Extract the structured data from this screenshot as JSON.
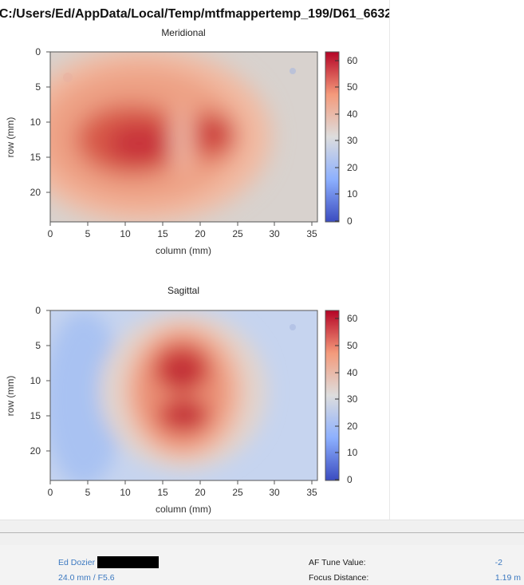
{
  "window": {
    "title": "C:/Users/Ed/AppData/Local/Temp/mtfmappertemp_199/D61_6632"
  },
  "plots": [
    {
      "title": "Meridional",
      "xlabel": "column (mm)",
      "ylabel": "row (mm)",
      "x_ticks": [
        "0",
        "5",
        "10",
        "15",
        "20",
        "25",
        "30",
        "35"
      ],
      "y_ticks": [
        "0",
        "5",
        "10",
        "15",
        "20"
      ],
      "colorbar_ticks": [
        "60",
        "50",
        "40",
        "30",
        "20",
        "10",
        "0"
      ]
    },
    {
      "title": "Sagittal",
      "xlabel": "column (mm)",
      "ylabel": "row (mm)",
      "x_ticks": [
        "0",
        "5",
        "10",
        "15",
        "20",
        "25",
        "30",
        "35"
      ],
      "y_ticks": [
        "0",
        "5",
        "10",
        "15",
        "20"
      ],
      "colorbar_ticks": [
        "60",
        "50",
        "40",
        "30",
        "20",
        "10",
        "0"
      ]
    }
  ],
  "chart_data": [
    {
      "type": "heatmap",
      "title": "Meridional",
      "xlabel": "column (mm)",
      "ylabel": "row (mm)",
      "xlim": [
        0,
        36
      ],
      "ylim": [
        24,
        0
      ],
      "zlim": [
        0,
        65
      ],
      "colormap": "coolwarm",
      "peaks": [
        {
          "x": 12,
          "y": 13,
          "value": 58
        },
        {
          "x": 22,
          "y": 12,
          "value": 56
        }
      ],
      "background_value": 35
    },
    {
      "type": "heatmap",
      "title": "Sagittal",
      "xlabel": "column (mm)",
      "ylabel": "row (mm)",
      "xlim": [
        0,
        36
      ],
      "ylim": [
        24,
        0
      ],
      "zlim": [
        0,
        65
      ],
      "colormap": "coolwarm",
      "peaks": [
        {
          "x": 17.5,
          "y": 8.5,
          "value": 58
        },
        {
          "x": 18,
          "y": 15,
          "value": 57
        }
      ],
      "background_value": 22
    }
  ],
  "info": {
    "author": "Ed Dozier",
    "lens": "24.0 mm / F5.6",
    "af_tune_label": "AF Tune Value:",
    "af_tune_value": "-2",
    "focus_label": "Focus Distance:",
    "focus_value": "1.19 m"
  },
  "colors": {
    "cmap_low": "#3b4cc0",
    "cmap_mid": "#dddddd",
    "cmap_high": "#b40426",
    "link_blue": "#3b78c0"
  }
}
